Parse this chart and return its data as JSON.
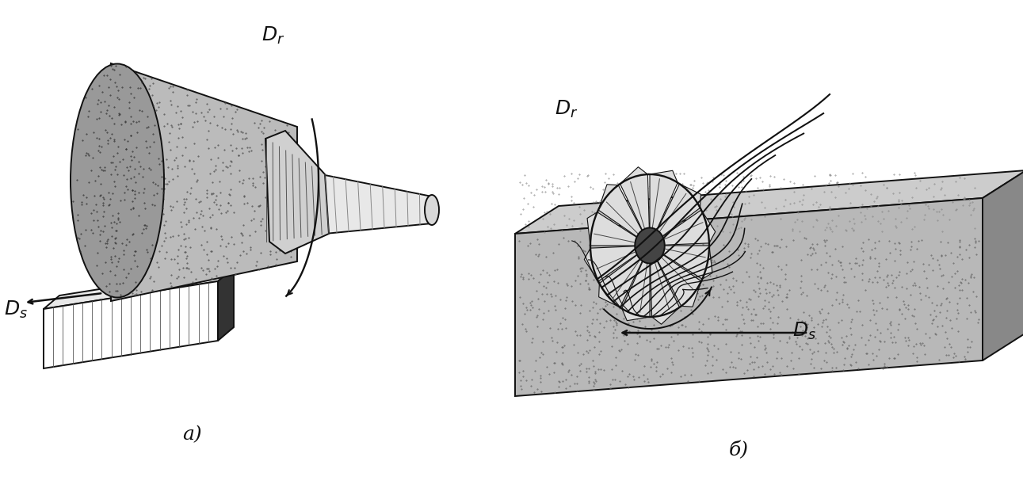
{
  "background_color": "#ffffff",
  "label_a": "a)",
  "label_b": "б)",
  "label_Dr_a": "$D_r$",
  "label_Ds_a": "$D_s$",
  "label_Dr_b": "$D_r$",
  "label_Ds_b": "$D_s$",
  "figsize": [
    12.91,
    6.21
  ],
  "dpi": 100,
  "title": "",
  "lw": 1.4,
  "dark": "#111111",
  "med": "#666666",
  "light": "#cccccc",
  "stipple": "#aaaaaa"
}
